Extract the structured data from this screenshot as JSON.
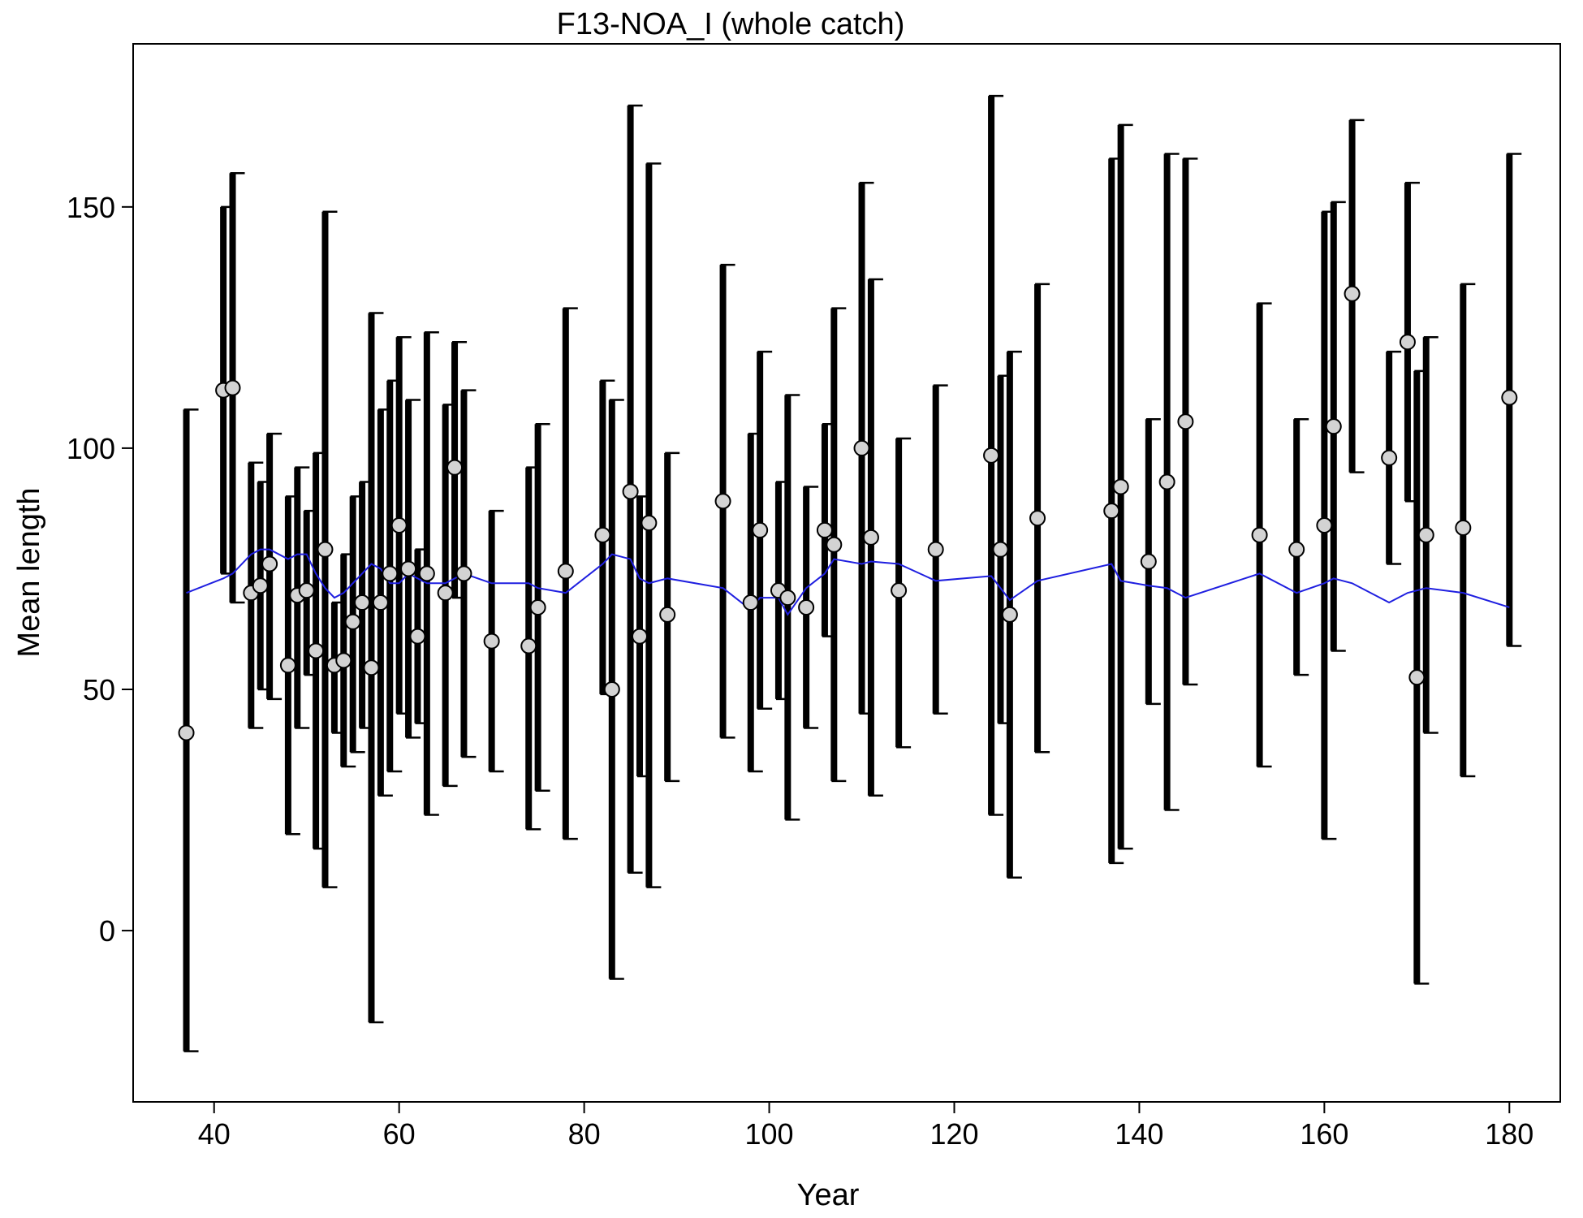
{
  "chart_data": {
    "type": "errorbar",
    "title": "F13-NOA_I (whole catch)",
    "x_label": "Year",
    "y_label": "Mean length",
    "xlim": [
      31.25,
      185.5
    ],
    "ylim": [
      -35.5,
      183.8
    ],
    "xticks": [
      40,
      60,
      80,
      100,
      120,
      140,
      160,
      180
    ],
    "yticks": [
      0,
      50,
      100,
      150
    ],
    "x": [
      37,
      41,
      42,
      44,
      45,
      46,
      48,
      49,
      50,
      51,
      52,
      53,
      54,
      55,
      56,
      57,
      58,
      59,
      60,
      61,
      62,
      63,
      65,
      66,
      67,
      70,
      74,
      75,
      78,
      82,
      83,
      85,
      86,
      87,
      89,
      95,
      98,
      99,
      101,
      102,
      104,
      106,
      107,
      110,
      111,
      114,
      118,
      124,
      125,
      126,
      129,
      137,
      138,
      141,
      143,
      145,
      153,
      157,
      160,
      161,
      163,
      167,
      169,
      170,
      171,
      175,
      180
    ],
    "series": [
      {
        "name": "observed",
        "color": "#d3d3d3",
        "values": [
          41,
          112,
          112.5,
          70,
          71.5,
          76,
          55,
          69.5,
          70.5,
          58,
          79,
          55,
          56,
          64,
          68,
          54.5,
          68,
          74,
          84,
          75,
          61,
          74,
          70,
          96,
          74,
          60,
          59,
          67,
          74.5,
          82,
          50,
          91,
          61,
          84.5,
          65.5,
          89,
          68,
          83,
          70.5,
          69,
          67,
          83,
          80,
          100,
          81.5,
          70.5,
          79,
          98.5,
          79,
          65.5,
          85.5,
          87,
          92,
          76.5,
          93,
          105.5,
          82,
          79,
          84,
          104.5,
          132,
          98,
          122,
          52.5,
          82,
          83.5,
          110.5
        ]
      },
      {
        "name": "lower",
        "color": "#000000",
        "values": [
          -25,
          74,
          68,
          42,
          50,
          48,
          20,
          42,
          53,
          17,
          9,
          41,
          34,
          37,
          42,
          -19,
          28,
          33,
          45,
          40,
          43,
          24,
          30,
          69,
          36,
          33,
          21,
          29,
          19,
          49,
          -10,
          12,
          32,
          9,
          31,
          40,
          33,
          46,
          48,
          23,
          42,
          61,
          31,
          45,
          28,
          38,
          45,
          24,
          43,
          11,
          37,
          14,
          17,
          47,
          25,
          51,
          34,
          53,
          19,
          58,
          95,
          76,
          89,
          -11,
          41,
          32,
          59
        ]
      },
      {
        "name": "upper",
        "color": "#000000",
        "values": [
          108,
          150,
          157,
          97,
          93,
          103,
          90,
          96,
          87,
          99,
          149,
          68,
          78,
          90,
          93,
          128,
          108,
          114,
          123,
          110,
          79,
          124,
          109,
          122,
          112,
          87,
          96,
          105,
          129,
          114,
          110,
          171,
          90,
          159,
          99,
          138,
          103,
          120,
          93,
          111,
          92,
          105,
          129,
          155,
          135,
          102,
          113,
          173,
          115,
          120,
          134,
          160,
          167,
          106,
          161,
          160,
          130,
          106,
          149,
          151,
          168,
          120,
          155,
          116,
          123,
          134,
          161
        ]
      },
      {
        "name": "expected",
        "color": "#1f1fe0",
        "values": [
          70,
          73,
          74,
          78,
          79,
          79,
          77,
          78,
          78,
          74,
          71,
          69,
          70,
          72,
          74,
          76,
          75,
          72,
          72,
          74,
          73,
          72,
          72,
          73,
          74,
          72,
          72,
          71,
          70,
          76,
          78,
          77,
          73,
          72,
          73,
          71,
          66.5,
          69,
          69,
          65.5,
          71,
          74,
          77,
          76,
          76.5,
          76,
          72.5,
          73.5,
          71,
          68.5,
          72.5,
          76,
          72.5,
          71.5,
          71,
          69,
          74,
          70,
          72,
          73,
          72,
          68,
          70,
          70.5,
          71,
          70,
          67
        ]
      }
    ]
  }
}
